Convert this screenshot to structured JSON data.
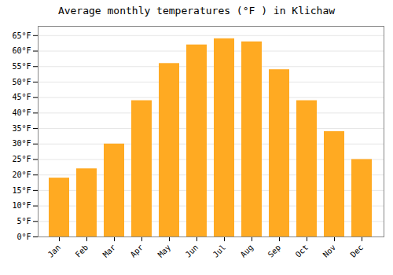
{
  "chart_data": {
    "type": "bar",
    "title": "Average monthly temperatures (°F ) in Klichaw",
    "categories": [
      "Jan",
      "Feb",
      "Mar",
      "Apr",
      "May",
      "Jun",
      "Jul",
      "Aug",
      "Sep",
      "Oct",
      "Nov",
      "Dec"
    ],
    "values": [
      19,
      22,
      30,
      44,
      56,
      62,
      64,
      63,
      54,
      44,
      34,
      25
    ],
    "color": "#FFAA22",
    "ylim": [
      0,
      68
    ],
    "yticks": [
      {
        "value": 0,
        "label": "0°F"
      },
      {
        "value": 5,
        "label": "5°F"
      },
      {
        "value": 10,
        "label": "10°F"
      },
      {
        "value": 15,
        "label": "15°F"
      },
      {
        "value": 20,
        "label": "20°F"
      },
      {
        "value": 25,
        "label": "25°F"
      },
      {
        "value": 30,
        "label": "30°F"
      },
      {
        "value": 35,
        "label": "35°F"
      },
      {
        "value": 40,
        "label": "40°F"
      },
      {
        "value": 45,
        "label": "45°F"
      },
      {
        "value": 50,
        "label": "50°F"
      },
      {
        "value": 55,
        "label": "55°F"
      },
      {
        "value": 60,
        "label": "60°F"
      },
      {
        "value": 65,
        "label": "65°F"
      }
    ],
    "grid": true
  }
}
